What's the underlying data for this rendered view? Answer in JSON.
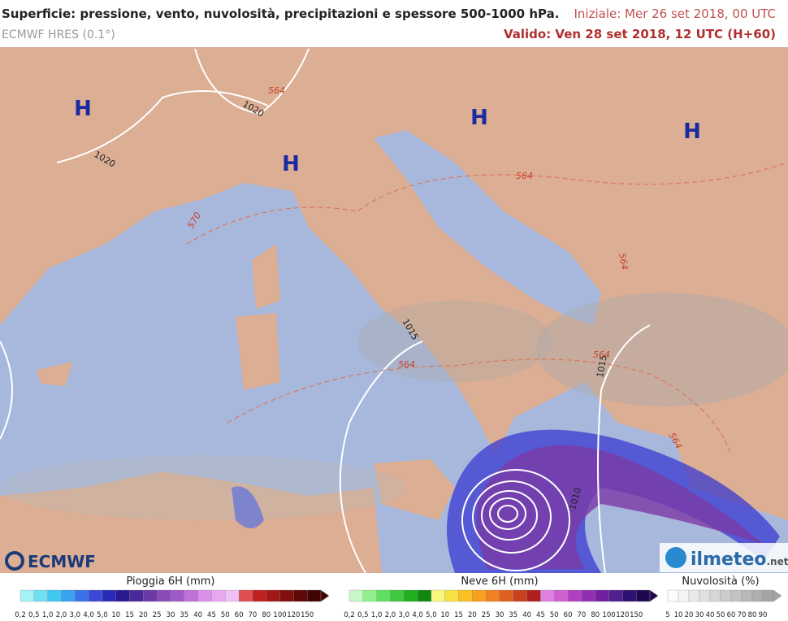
{
  "header": {
    "title": "Superficie: pressione, vento, nuvolosità, precipitazioni e spessore 500-1000 hPa.",
    "model": "ECMWF HRES (0.1°)",
    "initial": "Iniziale: Mer 26 set 2018, 00 UTC",
    "valid": "Valido: Ven 28 set 2018, 12 UTC (H+60)"
  },
  "map": {
    "highs": [
      "H",
      "H",
      "H",
      "H"
    ],
    "isobars": [
      "1020",
      "1020",
      "1015",
      "1015",
      "1010"
    ],
    "thickness": [
      "564",
      "570",
      "564",
      "564",
      "564",
      "564",
      "564"
    ],
    "logos": [
      "ECMWF",
      "ilmeteo",
      ".net"
    ]
  },
  "legends": [
    {
      "title": "Pioggia 6H (mm)",
      "labels": [
        "0,2",
        "0,5",
        "1,0",
        "2,0",
        "3,0",
        "4,0",
        "5,0",
        "10",
        "15",
        "20",
        "25",
        "30",
        "35",
        "40",
        "45",
        "50",
        "60",
        "70",
        "80",
        "100",
        "120",
        "150"
      ]
    },
    {
      "title": "Neve 6H (mm)",
      "labels": [
        "0,2",
        "0,5",
        "1,0",
        "2,0",
        "3,0",
        "4,0",
        "5,0",
        "10",
        "15",
        "20",
        "25",
        "30",
        "35",
        "40",
        "45",
        "50",
        "60",
        "70",
        "80",
        "100",
        "120",
        "150"
      ]
    },
    {
      "title": "Nuvolosità (%)",
      "labels": [
        "5",
        "10",
        "20",
        "30",
        "40",
        "50",
        "60",
        "70",
        "80",
        "90"
      ]
    }
  ]
}
